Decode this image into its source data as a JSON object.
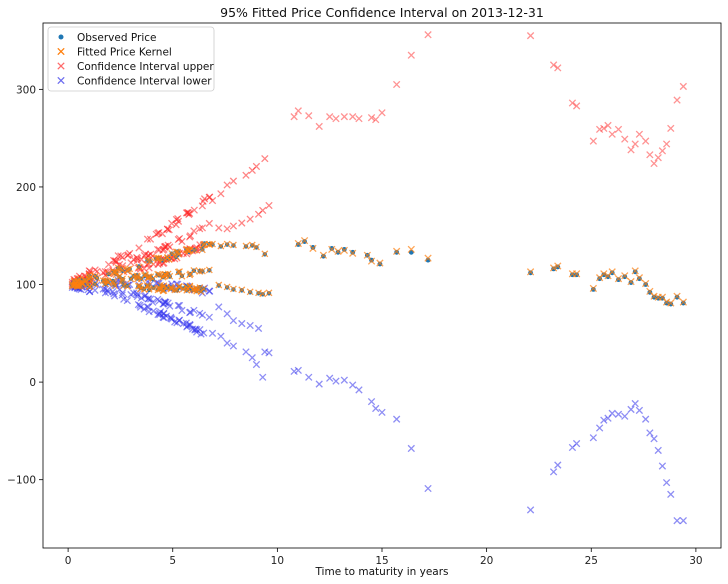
{
  "chart_data": {
    "type": "scatter",
    "title": "95% Fitted Price Confidence Interval on 2013-12-31",
    "xlabel": "Time to maturity in years",
    "ylabel": "",
    "xlim": [
      -1.2,
      31.2
    ],
    "ylim": [
      -170,
      368
    ],
    "xticks": [
      0,
      5,
      10,
      15,
      20,
      25,
      30
    ],
    "yticks": [
      -100,
      0,
      100,
      200,
      300
    ],
    "ytick_labels": [
      "−100",
      "0",
      "100",
      "200",
      "300"
    ],
    "grid": false,
    "legend_position": "top-left",
    "series": [
      {
        "name": "Observed Price",
        "marker": "circle",
        "color": "#1f77b4",
        "x": [
          11.0,
          11.3,
          11.7,
          12.2,
          12.6,
          12.9,
          13.2,
          13.6,
          14.3,
          14.5,
          14.9,
          15.7,
          16.4,
          17.2,
          22.1,
          23.2,
          23.4,
          24.1,
          24.3,
          25.1,
          25.4,
          25.6,
          25.8,
          26.0,
          26.3,
          26.6,
          26.9,
          27.1,
          27.3,
          27.6,
          27.8,
          28.0,
          28.2,
          28.4,
          28.6,
          28.8,
          29.1,
          29.4
        ],
        "y": [
          141,
          144,
          138,
          129,
          137,
          133,
          136,
          133,
          130,
          125,
          121,
          133,
          133,
          125,
          112,
          116,
          118,
          110,
          110,
          95,
          106,
          110,
          108,
          112,
          105,
          108,
          102,
          113,
          106,
          100,
          92,
          87,
          86,
          86,
          81,
          80,
          87,
          81
        ]
      },
      {
        "name": "Fitted Price Kernel",
        "marker": "x",
        "color": "#ff7f0e",
        "x": [
          11.0,
          11.3,
          11.7,
          12.2,
          12.6,
          12.9,
          13.2,
          13.6,
          14.3,
          14.5,
          14.9,
          15.7,
          16.4,
          17.2,
          22.1,
          23.2,
          23.4,
          24.1,
          24.3,
          25.1,
          25.4,
          25.6,
          25.8,
          26.0,
          26.3,
          26.6,
          26.9,
          27.1,
          27.3,
          27.6,
          27.8,
          28.0,
          28.2,
          28.4,
          28.6,
          28.8,
          29.1,
          29.4
        ],
        "y": [
          142,
          145,
          137,
          130,
          136,
          134,
          135,
          132,
          130,
          124,
          122,
          134,
          136,
          127,
          113,
          117,
          119,
          111,
          111,
          96,
          107,
          111,
          109,
          113,
          106,
          109,
          103,
          114,
          107,
          101,
          93,
          88,
          87,
          87,
          82,
          81,
          88,
          82
        ]
      },
      {
        "name": "Confidence Interval upper",
        "marker": "x",
        "color": "#ff3b3b",
        "x": [
          10.8,
          11.0,
          11.5,
          12.0,
          12.5,
          12.8,
          13.2,
          13.6,
          13.9,
          14.5,
          14.7,
          15.0,
          15.7,
          16.4,
          17.2,
          22.1,
          23.2,
          23.4,
          24.1,
          24.3,
          25.1,
          25.4,
          25.6,
          25.8,
          26.0,
          26.3,
          26.6,
          26.9,
          27.1,
          27.3,
          27.6,
          27.8,
          28.0,
          28.2,
          28.4,
          28.6,
          28.8,
          29.1,
          29.4
        ],
        "y": [
          272,
          278,
          273,
          262,
          272,
          270,
          272,
          272,
          270,
          271,
          269,
          276,
          305,
          335,
          356,
          355,
          325,
          322,
          286,
          283,
          247,
          259,
          260,
          263,
          254,
          259,
          249,
          238,
          244,
          254,
          247,
          233,
          224,
          230,
          237,
          244,
          260,
          289,
          303
        ]
      },
      {
        "name": "Confidence Interval lower",
        "marker": "x",
        "color": "#4444ee",
        "x": [
          10.8,
          11.0,
          11.5,
          12.0,
          12.5,
          12.8,
          13.2,
          13.6,
          13.9,
          14.5,
          14.7,
          15.0,
          15.7,
          16.4,
          17.2,
          22.1,
          23.2,
          23.4,
          24.1,
          24.3,
          25.1,
          25.4,
          25.6,
          25.8,
          26.0,
          26.3,
          26.6,
          26.9,
          27.1,
          27.3,
          27.6,
          27.8,
          28.0,
          28.2,
          28.4,
          28.6,
          28.8,
          29.1,
          29.4
        ],
        "y": [
          11,
          12,
          5,
          -2,
          4,
          1,
          2,
          -3,
          -8,
          -20,
          -27,
          -31,
          -38,
          -68,
          -109,
          -131,
          -92,
          -85,
          -67,
          -63,
          -57,
          -47,
          -39,
          -37,
          -32,
          -33,
          -35,
          -28,
          -22,
          -29,
          -38,
          -52,
          -58,
          -70,
          -86,
          -103,
          -115,
          -142,
          -142
        ]
      }
    ]
  }
}
